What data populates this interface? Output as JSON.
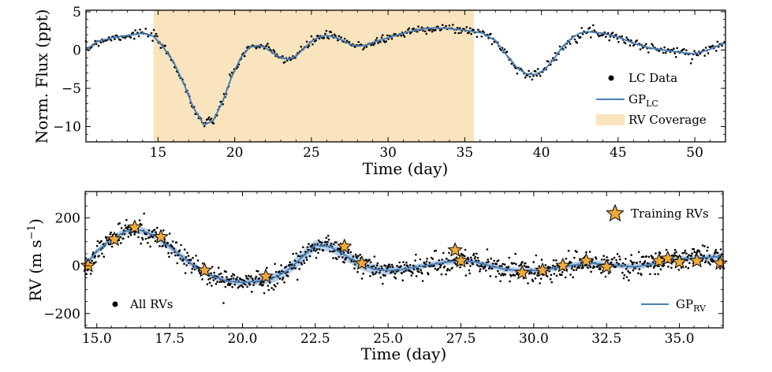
{
  "chart_data": [
    {
      "type": "line",
      "name": "light-curve-panel",
      "xlabel": "Time (day)",
      "ylabel": "Norm. Flux (ppt)",
      "xlim": [
        10.3,
        52
      ],
      "ylim": [
        -12,
        5.2
      ],
      "xticks": [
        15,
        20,
        25,
        30,
        35,
        40,
        45,
        50
      ],
      "xtick_labels": [
        "15",
        "20",
        "25",
        "30",
        "35",
        "40",
        "45",
        "50"
      ],
      "yticks": [
        5,
        0,
        -5,
        -10
      ],
      "ytick_labels": [
        "5",
        "0",
        "−5",
        "−10"
      ],
      "shaded_region": {
        "label": "RV Coverage",
        "x_start": 14.7,
        "x_end": 35.6,
        "color": "#f9e4bd"
      },
      "gp_curve": {
        "label_main": "GP",
        "label_sub": "LC",
        "color": "#4a7eb5",
        "x": [
          10.3,
          11,
          12,
          13,
          14,
          14.7,
          15.3,
          16,
          16.7,
          17.3,
          18,
          18.6,
          19.2,
          19.8,
          20.4,
          21,
          21.6,
          22,
          22.5,
          23,
          23.5,
          24,
          24.5,
          25,
          25.5,
          26,
          26.5,
          27,
          27.5,
          28,
          28.5,
          29,
          30,
          31,
          32,
          33,
          34,
          35,
          35.6,
          36.2,
          37,
          37.7,
          38.4,
          39,
          39.6,
          40.2,
          40.8,
          41.4,
          42,
          42.5,
          43,
          44,
          45,
          46,
          47,
          48,
          49,
          50,
          51,
          52
        ],
        "y": [
          0,
          1.1,
          1.6,
          1.9,
          2.2,
          1.8,
          0.5,
          -1.5,
          -4.5,
          -7.5,
          -9.8,
          -9.2,
          -6.8,
          -3.5,
          -1,
          0.4,
          0.6,
          0.3,
          -0.4,
          -1,
          -1.2,
          -0.8,
          0.2,
          1.1,
          1.7,
          1.9,
          1.7,
          1.3,
          0.8,
          0.5,
          0.6,
          1,
          1.6,
          2.2,
          2.7,
          2.9,
          2.8,
          2.6,
          2.4,
          2.2,
          1.2,
          -0.6,
          -2.3,
          -3.1,
          -3.2,
          -2.6,
          -1.2,
          0.5,
          1.6,
          2.2,
          2.4,
          2.2,
          1.7,
          0.9,
          0.3,
          0,
          -0.3,
          -0.5,
          0.1,
          1
        ]
      },
      "data_points_label": "LC Data",
      "legend_position": "lower-right"
    },
    {
      "type": "line",
      "name": "rv-panel",
      "xlabel": "Time (day)",
      "ylabel_main": "RV (m s",
      "ylabel_sup": "−1",
      "ylabel_close": ")",
      "xlim": [
        14.6,
        36.5
      ],
      "ylim": [
        -260,
        310
      ],
      "xticks": [
        15,
        17.5,
        20,
        22.5,
        25,
        27.5,
        30,
        32.5,
        35
      ],
      "xtick_labels": [
        "15.0",
        "17.5",
        "20.0",
        "22.5",
        "25.0",
        "27.5",
        "30.0",
        "32.5",
        "35.0"
      ],
      "yticks": [
        200,
        0,
        -200
      ],
      "ytick_labels": [
        "200",
        "0",
        "−200"
      ],
      "gp_curve": {
        "label_main": "GP",
        "label_sub": "RV",
        "color": "#4a7eb5",
        "band_color": "#a9c4e3",
        "band_halfwidth": [
          10,
          12,
          14,
          15,
          16,
          17,
          15,
          14,
          13,
          12,
          12,
          14,
          16,
          18,
          22,
          25,
          22,
          20,
          22,
          24,
          22,
          18,
          14,
          12,
          12,
          12,
          12,
          12,
          12,
          12,
          12,
          12,
          12,
          12,
          13,
          13,
          12,
          12,
          12,
          12,
          12,
          12,
          13,
          14
        ],
        "x": [
          14.6,
          15,
          15.5,
          16,
          16.5,
          17,
          17.5,
          18,
          18.5,
          19,
          19.5,
          20,
          20.5,
          21,
          21.5,
          22,
          22.5,
          23,
          23.5,
          24,
          24.5,
          25,
          25.5,
          26,
          26.5,
          27,
          27.5,
          28,
          28.5,
          29,
          29.5,
          30,
          30.5,
          31,
          31.5,
          32,
          32.5,
          33,
          33.5,
          34,
          34.5,
          35,
          35.5,
          36.5
        ],
        "y": [
          0,
          60,
          110,
          145,
          148,
          125,
          80,
          30,
          -15,
          -45,
          -65,
          -70,
          -65,
          -55,
          -25,
          30,
          85,
          80,
          45,
          10,
          -15,
          -20,
          -15,
          -5,
          5,
          15,
          20,
          15,
          0,
          -15,
          -20,
          -20,
          -15,
          -5,
          5,
          10,
          5,
          0,
          -5,
          5,
          20,
          30,
          30,
          40
        ]
      },
      "training_rvs": {
        "label": "Training RVs",
        "color": "#f2a93b",
        "x": [
          14.7,
          15.6,
          16.3,
          17.2,
          18.7,
          20.8,
          23.5,
          24.1,
          27.3,
          27.5,
          29.6,
          30.3,
          31,
          31.8,
          32.5,
          34.3,
          34.6,
          35,
          35.6,
          36.4
        ],
        "y": [
          0,
          110,
          160,
          120,
          -20,
          -45,
          80,
          10,
          65,
          20,
          -30,
          -20,
          0,
          20,
          -5,
          20,
          30,
          15,
          20,
          10
        ]
      },
      "data_points_label": "All RVs",
      "legend_position": "upper-right, lower-left, lower-right"
    }
  ]
}
